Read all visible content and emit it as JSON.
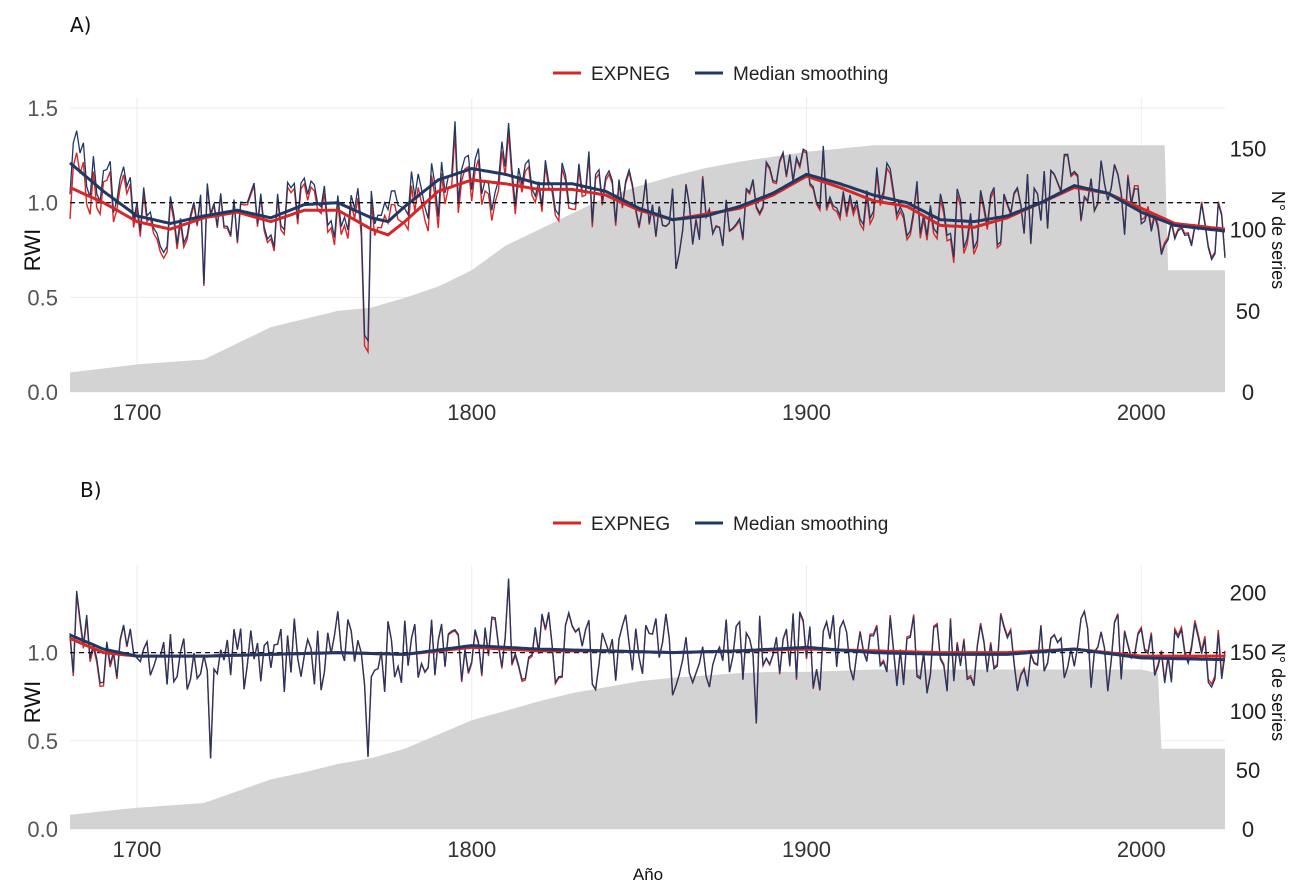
{
  "chart_data": [
    {
      "type": "line",
      "panel_label": "A)",
      "ylabel": "RWI",
      "y2label": "N° de series",
      "xlabel": "",
      "xlim": [
        1680,
        2025
      ],
      "ylim": [
        0,
        1.5
      ],
      "y2lim": [
        0,
        175
      ],
      "yticks": [
        "0.0",
        "0.5",
        "1.0",
        "1.5"
      ],
      "y2ticks": [
        "0",
        "50",
        "100",
        "150"
      ],
      "xticks": [
        "1700",
        "1800",
        "1900",
        "2000"
      ],
      "grid": true,
      "legend_position": "top",
      "reference_line": 1.0,
      "noise_amplitude": 0.22,
      "series": [
        {
          "name": "EXPNEG",
          "color": "#d62728"
        },
        {
          "name": "Median smoothing",
          "color": "#1f3864"
        }
      ],
      "smooth_expneg": {
        "x": [
          1680,
          1690,
          1700,
          1710,
          1720,
          1730,
          1740,
          1750,
          1760,
          1770,
          1775,
          1780,
          1790,
          1800,
          1810,
          1820,
          1830,
          1840,
          1850,
          1860,
          1870,
          1880,
          1890,
          1900,
          1910,
          1920,
          1930,
          1940,
          1950,
          1960,
          1970,
          1980,
          1990,
          2000,
          2010,
          2025
        ],
        "y": [
          1.08,
          1.0,
          0.9,
          0.86,
          0.92,
          0.95,
          0.9,
          0.96,
          0.96,
          0.86,
          0.83,
          0.9,
          1.06,
          1.12,
          1.1,
          1.07,
          1.07,
          1.04,
          0.96,
          0.91,
          0.94,
          0.97,
          1.04,
          1.14,
          1.08,
          1.01,
          0.98,
          0.88,
          0.87,
          0.92,
          1.0,
          1.08,
          1.05,
          0.97,
          0.89,
          0.86
        ]
      },
      "smooth_median": {
        "x": [
          1680,
          1690,
          1700,
          1710,
          1720,
          1730,
          1740,
          1750,
          1760,
          1770,
          1775,
          1780,
          1790,
          1800,
          1810,
          1820,
          1830,
          1840,
          1850,
          1860,
          1870,
          1880,
          1890,
          1900,
          1910,
          1920,
          1930,
          1940,
          1950,
          1960,
          1970,
          1980,
          1990,
          2000,
          2010,
          2025
        ],
        "y": [
          1.21,
          1.06,
          0.93,
          0.89,
          0.93,
          0.96,
          0.92,
          0.99,
          1.0,
          0.92,
          0.9,
          0.98,
          1.12,
          1.18,
          1.15,
          1.1,
          1.1,
          1.06,
          0.97,
          0.91,
          0.93,
          0.98,
          1.05,
          1.15,
          1.1,
          1.04,
          1.0,
          0.91,
          0.9,
          0.93,
          1.0,
          1.09,
          1.05,
          0.95,
          0.88,
          0.85
        ]
      },
      "sample_depth": {
        "x": [
          1680,
          1700,
          1720,
          1730,
          1740,
          1750,
          1760,
          1770,
          1780,
          1790,
          1800,
          1810,
          1820,
          1830,
          1840,
          1850,
          1860,
          1870,
          1880,
          1890,
          1900,
          1910,
          1920,
          2000,
          2007,
          2008,
          2025
        ],
        "y": [
          12,
          17,
          20,
          30,
          40,
          45,
          50,
          52,
          58,
          65,
          75,
          90,
          100,
          110,
          120,
          127,
          133,
          138,
          142,
          145,
          148,
          150,
          152,
          152,
          152,
          75,
          75
        ]
      },
      "spikes": [
        {
          "x": 1768,
          "y": 0.3
        },
        {
          "x": 1769,
          "y": 0.27
        },
        {
          "x": 1682,
          "y": 1.38
        },
        {
          "x": 1720,
          "y": 0.57
        },
        {
          "x": 1811,
          "y": 1.42
        },
        {
          "x": 1861,
          "y": 0.65
        },
        {
          "x": 1795,
          "y": 1.43
        }
      ]
    },
    {
      "type": "line",
      "panel_label": "B)",
      "ylabel": "RWI",
      "y2label": "N° de series",
      "xlabel": "Año",
      "xlim": [
        1680,
        2025
      ],
      "ylim": [
        0,
        1.5
      ],
      "y2lim": [
        0,
        215
      ],
      "yticks": [
        "0.0",
        "0.5",
        "1.0"
      ],
      "y2ticks": [
        "0",
        "50",
        "100",
        "150",
        "200"
      ],
      "xticks": [
        "1700",
        "1800",
        "1900",
        "2000"
      ],
      "grid": true,
      "legend_position": "top",
      "reference_line": 1.0,
      "noise_amplitude": 0.25,
      "series": [
        {
          "name": "EXPNEG",
          "color": "#d62728"
        },
        {
          "name": "Median smoothing",
          "color": "#1f3864"
        }
      ],
      "smooth_expneg": {
        "x": [
          1680,
          1690,
          1700,
          1720,
          1740,
          1760,
          1780,
          1800,
          1820,
          1840,
          1860,
          1880,
          1900,
          1920,
          1940,
          1960,
          1980,
          2000,
          2025
        ],
        "y": [
          1.08,
          1.0,
          0.98,
          0.98,
          0.99,
          1.0,
          0.99,
          1.03,
          1.01,
          1.01,
          1.0,
          1.01,
          1.02,
          1.01,
          1.0,
          1.0,
          1.02,
          0.98,
          0.98
        ]
      },
      "smooth_median": {
        "x": [
          1680,
          1690,
          1700,
          1720,
          1740,
          1760,
          1780,
          1800,
          1820,
          1840,
          1860,
          1880,
          1900,
          1920,
          1940,
          1960,
          1980,
          2000,
          2025
        ],
        "y": [
          1.1,
          1.02,
          0.98,
          0.98,
          0.99,
          1.0,
          0.99,
          1.04,
          1.02,
          1.01,
          1.0,
          1.01,
          1.03,
          1.0,
          0.99,
          0.99,
          1.02,
          0.97,
          0.96
        ]
      },
      "sample_depth": {
        "x": [
          1680,
          1700,
          1720,
          1730,
          1740,
          1750,
          1760,
          1770,
          1780,
          1790,
          1800,
          1810,
          1820,
          1830,
          1840,
          1850,
          1860,
          1870,
          1880,
          1890,
          1900,
          1910,
          1920,
          2000,
          2005,
          2006,
          2025
        ],
        "y": [
          12,
          18,
          22,
          32,
          42,
          48,
          55,
          60,
          68,
          80,
          92,
          100,
          108,
          115,
          120,
          125,
          128,
          130,
          132,
          133,
          133,
          134,
          135,
          135,
          132,
          68,
          68
        ]
      },
      "spikes": [
        {
          "x": 1722,
          "y": 0.4
        },
        {
          "x": 1769,
          "y": 0.41
        },
        {
          "x": 1682,
          "y": 1.35
        },
        {
          "x": 1811,
          "y": 1.42
        },
        {
          "x": 1885,
          "y": 0.6
        }
      ]
    }
  ]
}
